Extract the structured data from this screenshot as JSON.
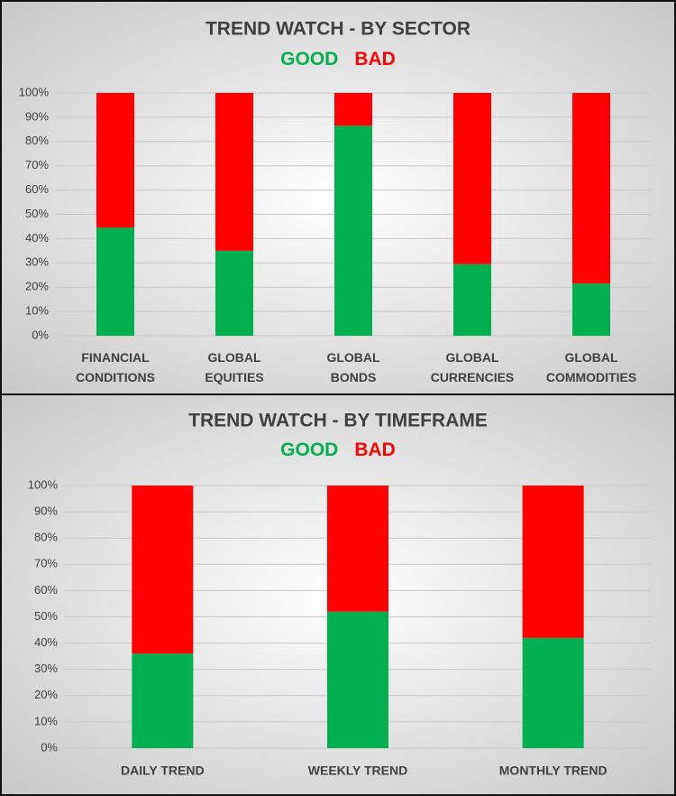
{
  "chart_data": [
    {
      "type": "stacked-bar",
      "title": "TREND WATCH - BY SECTOR",
      "categories": [
        "FINANCIAL CONDITIONS",
        "GLOBAL EQUITIES",
        "GLOBAL BONDS",
        "GLOBAL CURRENCIES",
        "GLOBAL COMMODITIES"
      ],
      "series": [
        {
          "name": "GOOD",
          "color": "#00b050",
          "values": [
            44.5,
            35,
            86.5,
            29.5,
            21.5
          ]
        },
        {
          "name": "BAD",
          "color": "#ff0000",
          "values": [
            55.5,
            65,
            13.5,
            70.5,
            78.5
          ]
        }
      ],
      "ylim": [
        0,
        100
      ],
      "yticks": [
        {
          "value": 0,
          "label": "0%"
        },
        {
          "value": 10,
          "label": "10%"
        },
        {
          "value": 20,
          "label": "20%"
        },
        {
          "value": 30,
          "label": "30%"
        },
        {
          "value": 40,
          "label": "40%"
        },
        {
          "value": 50,
          "label": "50%"
        },
        {
          "value": 60,
          "label": "60%"
        },
        {
          "value": 70,
          "label": "70%"
        },
        {
          "value": 80,
          "label": "80%"
        },
        {
          "value": 90,
          "label": "90%"
        },
        {
          "value": 100,
          "label": "100%"
        }
      ],
      "grid": true
    },
    {
      "type": "stacked-bar",
      "title": "TREND WATCH - BY TIMEFRAME",
      "categories": [
        "DAILY TREND",
        "WEEKLY TREND",
        "MONTHLY TREND"
      ],
      "series": [
        {
          "name": "GOOD",
          "color": "#00b050",
          "values": [
            36,
            52,
            42
          ]
        },
        {
          "name": "BAD",
          "color": "#ff0000",
          "values": [
            64,
            48,
            58
          ]
        }
      ],
      "ylim": [
        0,
        100
      ],
      "yticks": [
        {
          "value": 0,
          "label": "0%"
        },
        {
          "value": 10,
          "label": "10%"
        },
        {
          "value": 20,
          "label": "20%"
        },
        {
          "value": 30,
          "label": "30%"
        },
        {
          "value": 40,
          "label": "40%"
        },
        {
          "value": 50,
          "label": "50%"
        },
        {
          "value": 60,
          "label": "60%"
        },
        {
          "value": 70,
          "label": "70%"
        },
        {
          "value": 80,
          "label": "80%"
        },
        {
          "value": 90,
          "label": "90%"
        },
        {
          "value": 100,
          "label": "100%"
        }
      ],
      "grid": true
    }
  ]
}
